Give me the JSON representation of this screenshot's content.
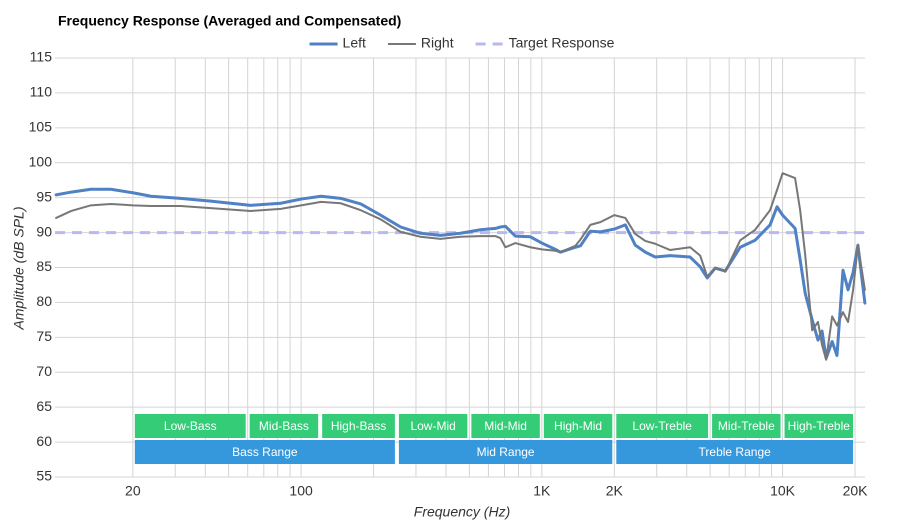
{
  "chart_data": {
    "type": "line",
    "title": "Frequency Response (Averaged and Compensated)",
    "x_label": "Frequency (Hz)",
    "y_label": "Amplitude (dB SPL)",
    "log_x": true,
    "grid": true,
    "legend": "top",
    "xlim": [
      9.5,
      22000
    ],
    "ylim": [
      55,
      115
    ],
    "xticks": [
      20,
      100,
      {
        "value": 1000,
        "label": "1K"
      },
      {
        "value": 2000,
        "label": "2K"
      },
      {
        "value": 10000,
        "label": "10K"
      },
      {
        "value": 20000,
        "label": "20K"
      }
    ],
    "xgrid": [
      30,
      40,
      50,
      60,
      70,
      80,
      90,
      200,
      300,
      400,
      500,
      600,
      700,
      800,
      900,
      3000,
      4000,
      5000,
      6000,
      7000,
      8000,
      9000
    ],
    "yticks": [
      55,
      60,
      65,
      70,
      75,
      80,
      85,
      90,
      95,
      100,
      105,
      110,
      115
    ],
    "series": [
      {
        "name": "Left",
        "color": "#4f81c4",
        "style": "solid",
        "width": 3,
        "x": [
          9.6,
          11.1,
          13.4,
          16.2,
          20,
          23.8,
          31.6,
          42.1,
          61.7,
          82.3,
          100,
          121,
          146,
          177,
          214,
          259,
          313,
          379,
          459,
          556,
          642,
          673,
          706,
          776,
          896,
          1000,
          1138,
          1194,
          1378,
          1446,
          1590,
          1750,
          2000,
          2222,
          2444,
          2690,
          2958,
          3412,
          4130,
          4548,
          4864,
          5248,
          5780,
          6668,
          7692,
          8872,
          9484,
          10000,
          11272,
          11832,
          12418,
          13274,
          14030,
          14588,
          15172,
          16070,
          16828,
          17826,
          18708,
          19634,
          20560,
          21980
        ],
        "values": [
          95.4,
          95.8,
          96.2,
          96.2,
          95.7,
          95.2,
          94.9,
          94.5,
          93.9,
          94.2,
          94.8,
          95.2,
          94.9,
          94.1,
          92.5,
          90.8,
          89.9,
          89.6,
          89.9,
          90.4,
          90.6,
          90.8,
          90.9,
          89.5,
          89.4,
          88.5,
          87.6,
          87.2,
          87.9,
          88.1,
          90.2,
          90.1,
          90.5,
          91.1,
          88.2,
          87.2,
          86.5,
          86.7,
          86.5,
          85.1,
          83.5,
          84.9,
          84.5,
          87.9,
          88.9,
          91.1,
          93.7,
          92.5,
          90.6,
          86.1,
          81.3,
          77.5,
          74.6,
          75.9,
          72.0,
          74.4,
          72.4,
          84.6,
          81.8,
          84.3,
          88.2,
          79.9
        ]
      },
      {
        "name": "Right",
        "color": "#777777",
        "style": "solid",
        "width": 2,
        "x": [
          9.6,
          11.1,
          13.4,
          16.2,
          20,
          23.8,
          31.6,
          42.1,
          61.7,
          82.3,
          100,
          121,
          146,
          177,
          214,
          259,
          313,
          379,
          459,
          556,
          642,
          673,
          706,
          776,
          896,
          1000,
          1138,
          1194,
          1378,
          1446,
          1590,
          1750,
          2000,
          2222,
          2444,
          2690,
          2958,
          3412,
          4130,
          4548,
          4864,
          5248,
          5780,
          6668,
          7692,
          8872,
          9484,
          10000,
          11272,
          11832,
          12418,
          13274,
          14030,
          14588,
          15172,
          16070,
          16828,
          17826,
          18708,
          19634,
          20560,
          21980
        ],
        "values": [
          92.1,
          93.1,
          93.9,
          94.1,
          93.9,
          93.8,
          93.8,
          93.5,
          93.1,
          93.4,
          93.9,
          94.4,
          94.2,
          93.2,
          91.9,
          90.1,
          89.4,
          89.1,
          89.4,
          89.5,
          89.5,
          89.2,
          87.9,
          88.5,
          87.9,
          87.6,
          87.4,
          87.2,
          88.1,
          89.0,
          91.1,
          91.5,
          92.5,
          92.1,
          89.8,
          88.8,
          88.4,
          87.5,
          87.9,
          86.7,
          83.7,
          85.0,
          84.4,
          88.9,
          90.4,
          93.2,
          96.1,
          98.5,
          97.8,
          93.2,
          86.8,
          76.0,
          77.2,
          73.9,
          71.8,
          78.0,
          76.7,
          78.6,
          77.2,
          81.8,
          88.2,
          81.8
        ]
      },
      {
        "name": "Target Response",
        "color": "#b8b8f2",
        "style": "dashed",
        "width": 3,
        "x": [
          9.5,
          22000
        ],
        "values": [
          90,
          90
        ]
      }
    ],
    "sub_range_color": "#35cc78",
    "range_color": "#3598dc",
    "sub_ranges": [
      {
        "label": "Low-Bass",
        "from": 20,
        "to": 60
      },
      {
        "label": "Mid-Bass",
        "from": 60,
        "to": 120
      },
      {
        "label": "High-Bass",
        "from": 120,
        "to": 250
      },
      {
        "label": "Low-Mid",
        "from": 250,
        "to": 500
      },
      {
        "label": "Mid-Mid",
        "from": 500,
        "to": 1000
      },
      {
        "label": "High-Mid",
        "from": 1000,
        "to": 2000
      },
      {
        "label": "Low-Treble",
        "from": 2000,
        "to": 5000
      },
      {
        "label": "Mid-Treble",
        "from": 5000,
        "to": 10000
      },
      {
        "label": "High-Treble",
        "from": 10000,
        "to": 20000
      }
    ],
    "ranges": [
      {
        "label": "Bass Range",
        "from": 20,
        "to": 250
      },
      {
        "label": "Mid Range",
        "from": 250,
        "to": 2000
      },
      {
        "label": "Treble Range",
        "from": 2000,
        "to": 20000
      }
    ]
  }
}
